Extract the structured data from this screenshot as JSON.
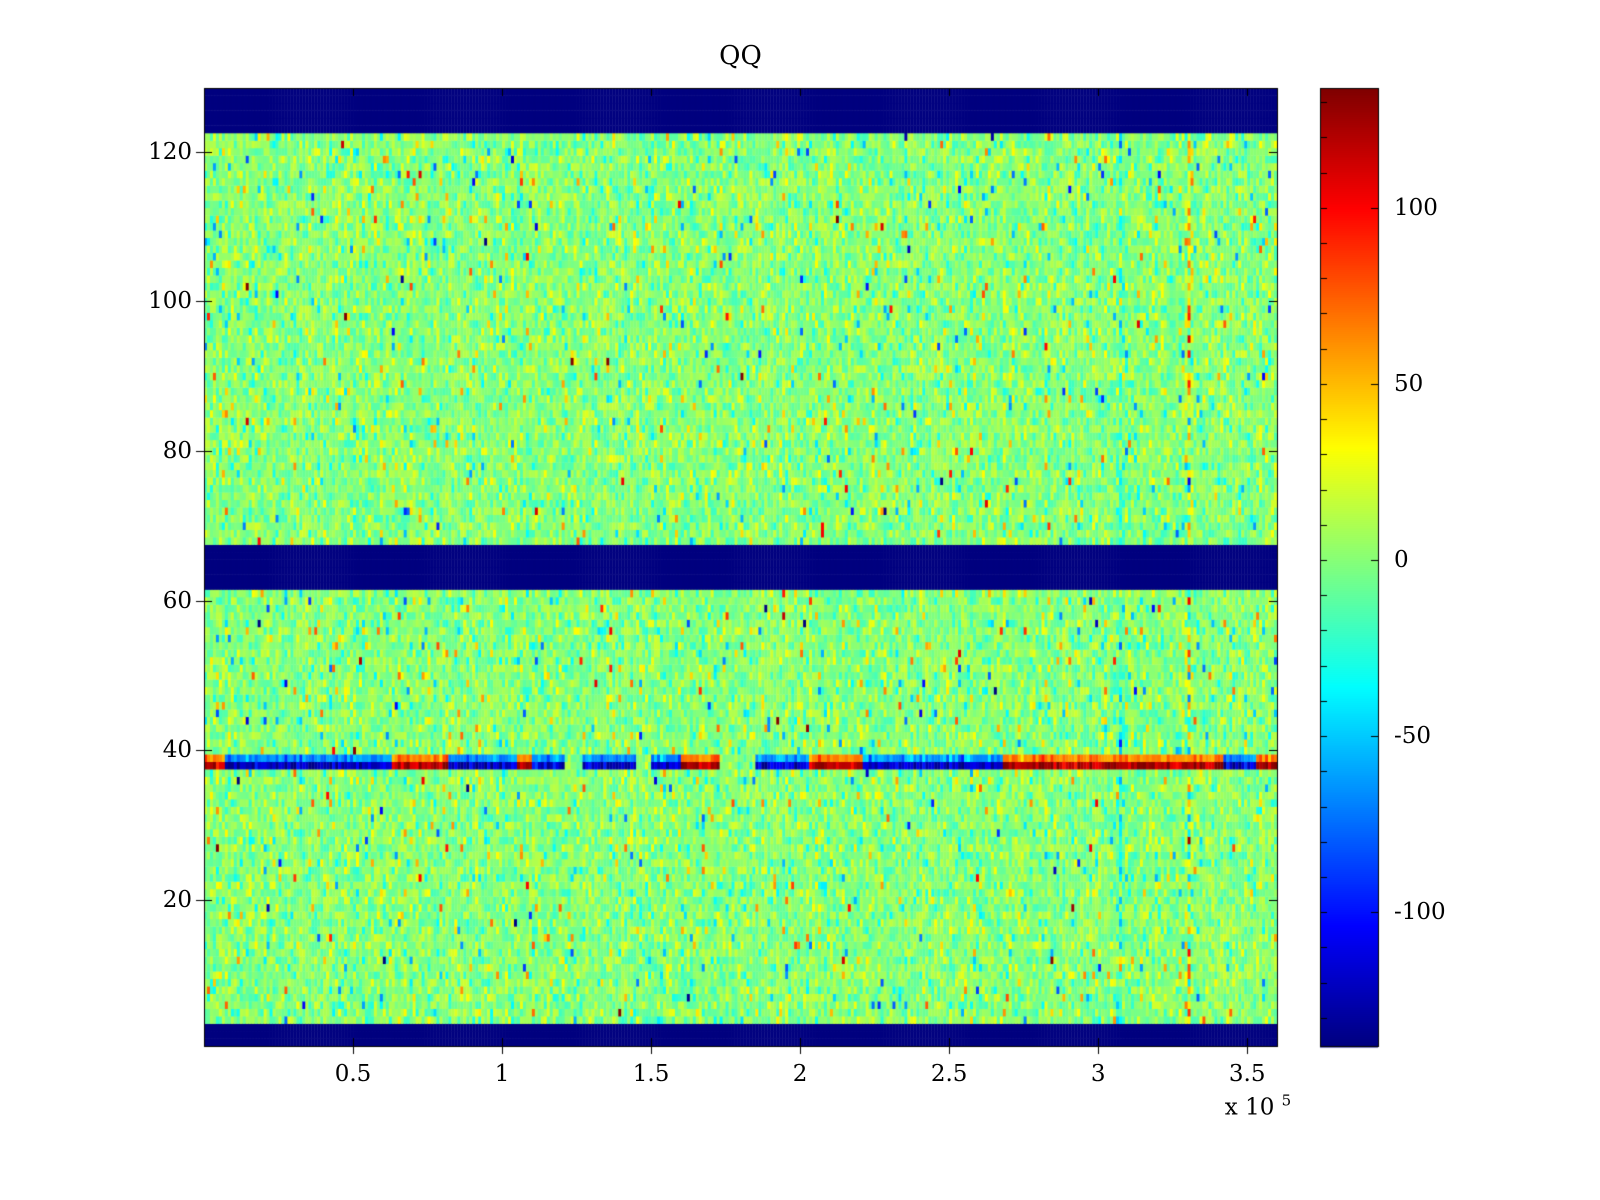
{
  "page": {
    "background": "#ffffff"
  },
  "chart_data": {
    "type": "heatmap",
    "title": "QQ",
    "x_range": [
      0,
      360000
    ],
    "x_ticks": [
      50000,
      100000,
      150000,
      200000,
      250000,
      300000,
      350000
    ],
    "x_tick_labels": [
      "0.5",
      "1",
      "1.5",
      "2",
      "2.5",
      "3",
      "3.5"
    ],
    "x_scale_label_base": "x 10",
    "x_scale_label_exponent": "5",
    "y_range_rows": [
      0.5,
      128.5
    ],
    "y_ticks": [
      20,
      40,
      60,
      80,
      100,
      120
    ],
    "y_tick_labels": [
      "20",
      "40",
      "60",
      "80",
      "100",
      "120"
    ],
    "rows": 128,
    "cols": 360,
    "color_limits": [
      -138,
      134
    ],
    "colormap": "jet",
    "background_value_mean": 0,
    "colorbar_ticks": [
      100,
      50,
      0,
      -50,
      -100
    ],
    "colorbar_tick_labels": [
      "100",
      "50",
      "0",
      "-50",
      "-100"
    ],
    "colorbar_minor_tick_step": 10,
    "noise": {
      "seed": 1337,
      "std_main": 12,
      "std_mid": 26,
      "std_tail": 55,
      "p_mid": 0.12,
      "p_tail": 0.03
    },
    "features": {
      "blue_band_rows": [
        [
          1,
          3
        ],
        [
          62,
          67
        ],
        [
          123,
          128
        ]
      ],
      "band_value": -138,
      "stripe": {
        "row": 38,
        "secondary_row": 39,
        "amplitude_min": 100,
        "amplitude_max": 138,
        "run_min": 4,
        "run_max": 24,
        "p_pos": 0.4,
        "p_neg": 0.4
      },
      "vertical_anomalies": [
        {
          "x": 330000,
          "bias": 18,
          "extra_std": 45
        },
        {
          "x": 307000,
          "bias": -20,
          "extra_std": 18
        }
      ]
    }
  }
}
